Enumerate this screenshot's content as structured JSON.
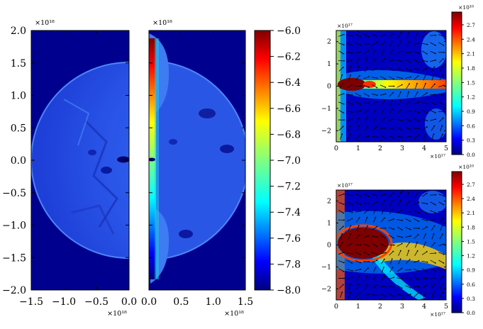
{
  "chart_data": [
    {
      "type": "heatmap",
      "panel": "left-density-map",
      "x_ticks": [
        "−1.5",
        "−1.0",
        "−0.5",
        "0.0"
      ],
      "y_ticks": [
        "2.0",
        "1.5",
        "1.0",
        "0.5",
        "0.0",
        "−0.5",
        "−1.0",
        "−1.5",
        "−2.0"
      ],
      "x_exponent": "×10¹⁸",
      "y_exponent": "×10¹⁸",
      "xlim": [
        -1.5,
        0.0
      ],
      "ylim": [
        -2.0,
        2.0
      ]
    },
    {
      "type": "heatmap",
      "panel": "right-density-map",
      "x_ticks": [
        "0.0",
        "0.5",
        "1.0",
        "1.5"
      ],
      "x_exponent": "×10¹⁸",
      "y_exponent": "×10¹⁸",
      "xlim": [
        0.0,
        1.5
      ],
      "ylim": [
        -2.0,
        2.0
      ]
    },
    {
      "type": "colorbar",
      "panel": "main-colorbar",
      "ticks": [
        "−6.0",
        "−6.2",
        "−6.4",
        "−6.6",
        "−6.8",
        "−7.0",
        "−7.2",
        "−7.4",
        "−7.6",
        "−7.8",
        "−8.0"
      ],
      "range": [
        -8.0,
        -6.0
      ]
    },
    {
      "type": "heatmap",
      "panel": "top-zoom-map",
      "x_ticks": [
        "0",
        "1",
        "2",
        "3",
        "4",
        "5"
      ],
      "y_ticks": [
        "2",
        "1",
        "0",
        "−1",
        "−2"
      ],
      "x_exponent": "×10¹⁷",
      "y_exponent": "×10¹⁷",
      "xlim": [
        0,
        5
      ],
      "ylim": [
        -2.5,
        2.5
      ],
      "colorbar_ticks": [
        "2.7",
        "2.4",
        "2.1",
        "1.8",
        "1.5",
        "1.2",
        "0.9",
        "0.6",
        "0.3",
        "0.0"
      ],
      "colorbar_exponent": "×10¹⁰"
    },
    {
      "type": "heatmap",
      "panel": "bottom-zoom-map",
      "x_ticks": [
        "0",
        "1",
        "2",
        "3",
        "4",
        "5"
      ],
      "y_ticks": [
        "2",
        "1",
        "0",
        "−1",
        "−2"
      ],
      "x_exponent": "×10¹⁷",
      "y_exponent": "×10¹⁷",
      "xlim": [
        0,
        5
      ],
      "ylim": [
        -2.5,
        2.5
      ],
      "colorbar_ticks": [
        "2.7",
        "2.4",
        "2.1",
        "1.8",
        "1.5",
        "1.2",
        "0.9",
        "0.6",
        "0.3",
        "0.0"
      ],
      "colorbar_exponent": "×10¹⁰"
    }
  ],
  "colors": {
    "background_blue": "#00008f",
    "jet": [
      "#00007f",
      "#0000ff",
      "#0080ff",
      "#00ffff",
      "#80ff80",
      "#ffff00",
      "#ff8000",
      "#ff0000",
      "#7f0000"
    ]
  }
}
